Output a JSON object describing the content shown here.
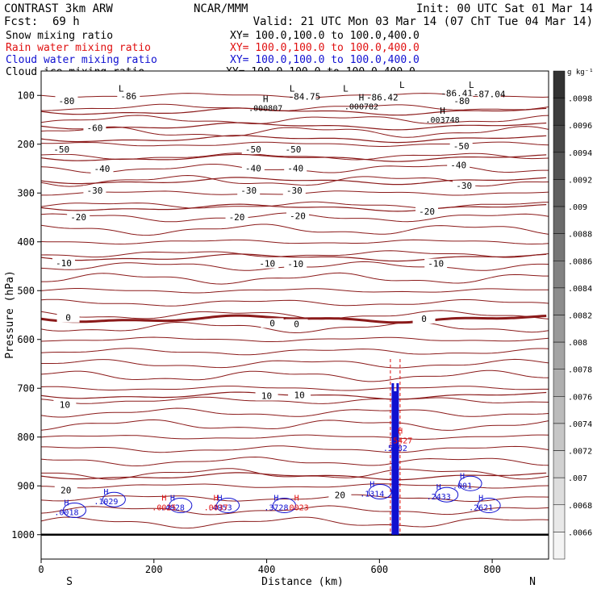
{
  "header": {
    "model": "CONTRAST  3km ARW",
    "org": "NCAR/MMM",
    "init": "Init: 00 UTC Sat 01 Mar 14",
    "fcst_label": "Fcst:",
    "fcst_value": "69 h",
    "valid": "Valid: 21 UTC Mon 03 Mar 14 (07 ChT Tue 04 Mar 14)"
  },
  "legend": [
    {
      "label": "Snow mixing ratio",
      "xy": "XY= 100.0,100.0 to 100.0,400.0",
      "color": "#000000"
    },
    {
      "label": "Rain water mixing ratio",
      "xy": "XY= 100.0,100.0 to 100.0,400.0",
      "color": "#e01010"
    },
    {
      "label": "Cloud water mixing ratio",
      "xy": "XY= 100.0,100.0 to 100.0,400.0",
      "color": "#1010d0"
    },
    {
      "label": "Cloud ice mixing ratio",
      "xy": "XY= 100.0,100.0 to 100.0,400.0",
      "color": "#000000"
    }
  ],
  "chart_data": {
    "type": "cross-section contour",
    "xlabel": "Distance (km)",
    "ylabel": "Pressure (hPa)",
    "xlim": [
      0,
      900
    ],
    "ylim": [
      1050,
      50
    ],
    "x_ticks": [
      0,
      200,
      400,
      600,
      800
    ],
    "y_ticks": [
      100,
      200,
      300,
      400,
      500,
      600,
      700,
      800,
      900,
      1000
    ],
    "x_end_labels": {
      "left": "S",
      "right": "N"
    },
    "colorbar": {
      "unit": "g kg⁻¹",
      "labels": [
        ".0098",
        ".0096",
        ".0094",
        ".0092",
        ".009",
        ".0088",
        ".0086",
        ".0084",
        ".0082",
        ".008",
        ".0078",
        ".0076",
        ".0074",
        ".0072",
        ".007",
        ".0068",
        ".0066"
      ]
    },
    "temperature_contours": [
      {
        "level": "-80",
        "p": 133
      },
      {
        "level": "-60",
        "p": 163
      },
      {
        "level": "-50",
        "p": 189
      },
      {
        "level": "-40",
        "p": 228
      },
      {
        "level": "-30",
        "p": 275
      },
      {
        "level": "-20",
        "p": 330
      },
      {
        "level": "-10",
        "p": 432
      },
      {
        "level": "0",
        "p": 558
      },
      {
        "level": "10",
        "p": 715
      },
      {
        "level": "20",
        "p": 880
      }
    ],
    "contour_labels": [
      {
        "text": "-86",
        "x": 155,
        "p": 103
      },
      {
        "text": "-80",
        "x": 45,
        "p": 113
      },
      {
        "text": "-84.75",
        "x": 467,
        "p": 104
      },
      {
        "text": "-86.42",
        "x": 605,
        "p": 105
      },
      {
        "text": "-86.41",
        "x": 737,
        "p": 97
      },
      {
        "text": "-87.04",
        "x": 795,
        "p": 99
      },
      {
        "text": "-80",
        "x": 746,
        "p": 113
      },
      {
        "text": "-60",
        "x": 95,
        "p": 168
      },
      {
        "text": "-50",
        "x": 36,
        "p": 212
      },
      {
        "text": "-50",
        "x": 376,
        "p": 212
      },
      {
        "text": "-50",
        "x": 447,
        "p": 212
      },
      {
        "text": "-50",
        "x": 745,
        "p": 205
      },
      {
        "text": "-40",
        "x": 108,
        "p": 252
      },
      {
        "text": "-40",
        "x": 376,
        "p": 251
      },
      {
        "text": "-40",
        "x": 451,
        "p": 251
      },
      {
        "text": "-40",
        "x": 740,
        "p": 244
      },
      {
        "text": "-30",
        "x": 95,
        "p": 296
      },
      {
        "text": "-30",
        "x": 368,
        "p": 296
      },
      {
        "text": "-30",
        "x": 449,
        "p": 296
      },
      {
        "text": "-30",
        "x": 750,
        "p": 286
      },
      {
        "text": "-20",
        "x": 66,
        "p": 351
      },
      {
        "text": "-20",
        "x": 347,
        "p": 351
      },
      {
        "text": "-20",
        "x": 455,
        "p": 348
      },
      {
        "text": "-20",
        "x": 684,
        "p": 339
      },
      {
        "text": "-10",
        "x": 40,
        "p": 445
      },
      {
        "text": "-10",
        "x": 401,
        "p": 446
      },
      {
        "text": "-10",
        "x": 451,
        "p": 447
      },
      {
        "text": "-10",
        "x": 700,
        "p": 446
      },
      {
        "text": "0",
        "x": 48,
        "p": 557
      },
      {
        "text": "0",
        "x": 410,
        "p": 568
      },
      {
        "text": "0",
        "x": 453,
        "p": 570
      },
      {
        "text": "0",
        "x": 679,
        "p": 559
      },
      {
        "text": "10",
        "x": 42,
        "p": 735
      },
      {
        "text": "10",
        "x": 400,
        "p": 717
      },
      {
        "text": "10",
        "x": 458,
        "p": 715
      },
      {
        "text": "20",
        "x": 44,
        "p": 910
      },
      {
        "text": "20",
        "x": 530,
        "p": 920
      }
    ],
    "extrema_labels": [
      {
        "type": "L",
        "x": 142,
        "p": 92
      },
      {
        "type": "L",
        "x": 445,
        "p": 92
      },
      {
        "type": "L",
        "x": 540,
        "p": 92
      },
      {
        "type": "L",
        "x": 640,
        "p": 85
      },
      {
        "type": "L",
        "x": 763,
        "p": 85
      },
      {
        "type": "H",
        "x": 398,
        "p": 114,
        "value": ".000807"
      },
      {
        "type": "H",
        "x": 568,
        "p": 110,
        "value": ".000782"
      },
      {
        "type": "H",
        "x": 712,
        "p": 138,
        "value": ".003748"
      }
    ],
    "series": [
      {
        "name": "Cloud water mixing ratio",
        "color": "#1010d0",
        "maxima": [
          {
            "x": 45,
            "p": 960,
            "value": ".0018"
          },
          {
            "x": 115,
            "p": 938,
            "value": ".1029"
          },
          {
            "x": 233,
            "p": 950,
            "value": ".4928"
          },
          {
            "x": 317,
            "p": 950,
            "value": ".4953"
          },
          {
            "x": 417,
            "p": 950,
            "value": ".3728"
          },
          {
            "x": 587,
            "p": 922,
            "value": ".1314"
          },
          {
            "x": 705,
            "p": 928,
            "value": ".2433"
          },
          {
            "x": 747,
            "p": 905,
            "value": ".001"
          },
          {
            "x": 780,
            "p": 950,
            "value": ".2621"
          }
        ]
      },
      {
        "name": "Rain water mixing ratio",
        "color": "#e01010",
        "maxima": [
          {
            "x": 218,
            "p": 950,
            "value": ".0025"
          },
          {
            "x": 310,
            "p": 950,
            "value": ".0037"
          },
          {
            "x": 453,
            "p": 950,
            "value": ".0023"
          },
          {
            "x": 637,
            "p": 813,
            "value": ".5427"
          }
        ]
      },
      {
        "name": "Snow mixing ratio",
        "color": "#000000",
        "maxima": []
      },
      {
        "name": "Cloud ice mixing ratio",
        "color": "#000000",
        "maxima": []
      }
    ],
    "convective_column": {
      "x": 628,
      "p_top": 640,
      "p_bottom": 1000,
      "label": ".5182"
    }
  }
}
